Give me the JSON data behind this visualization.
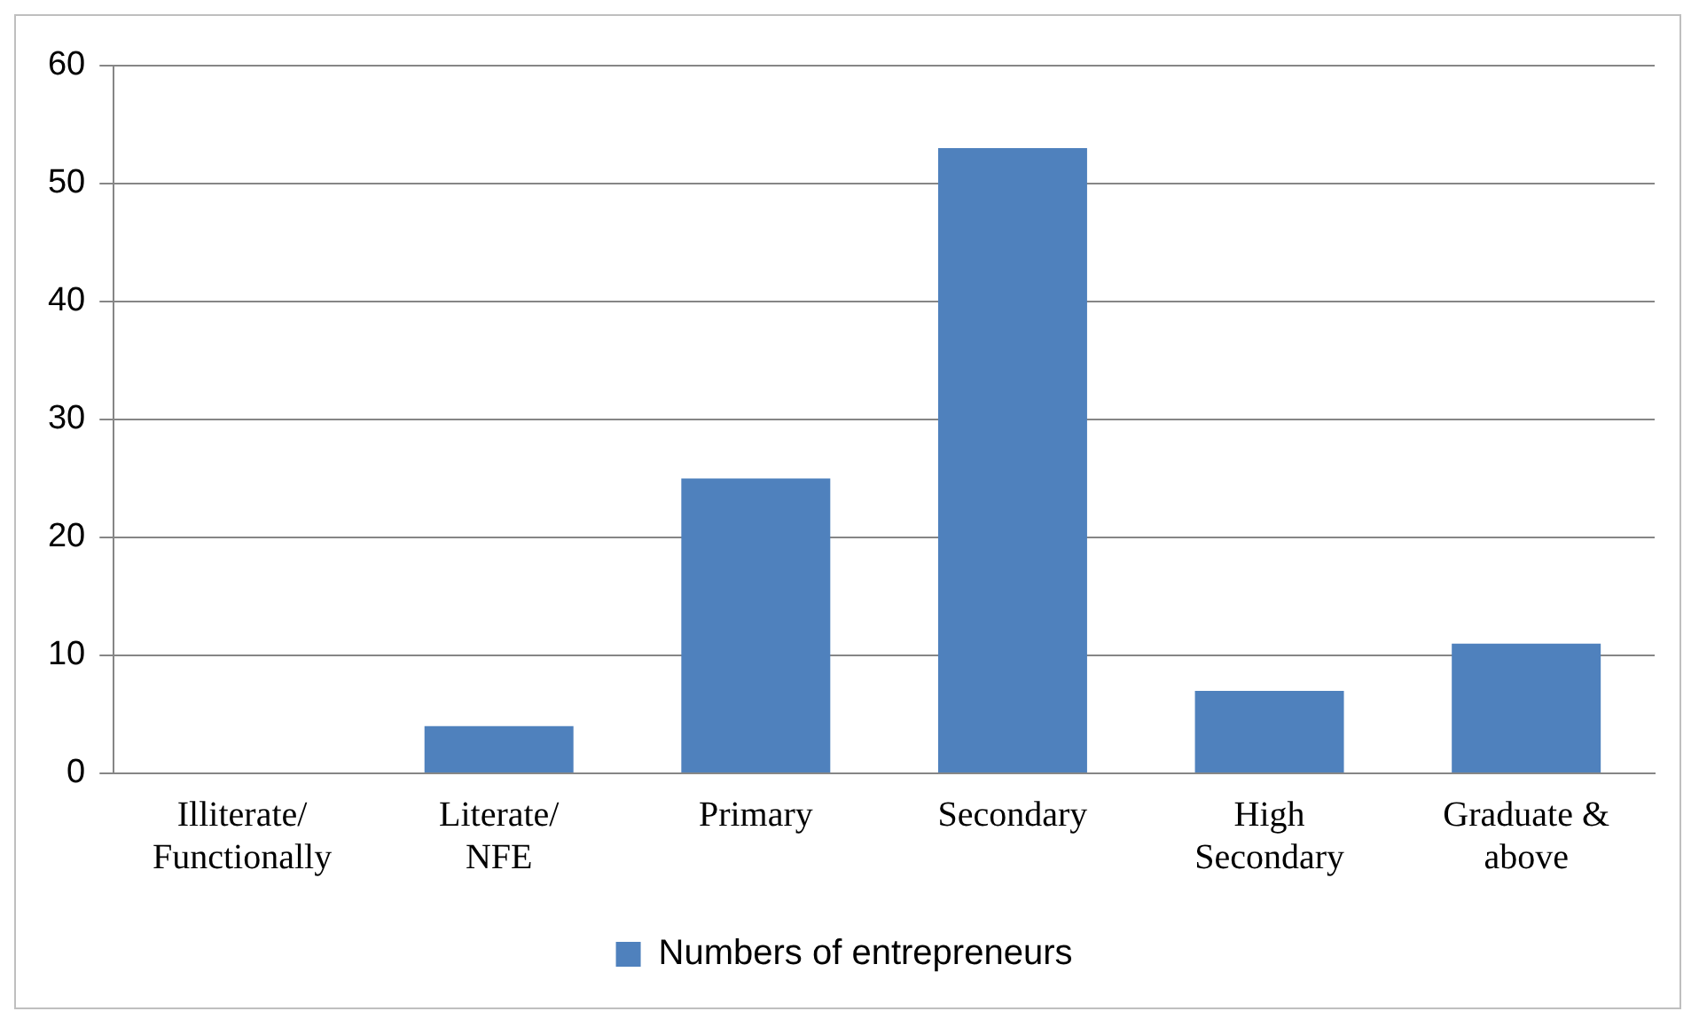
{
  "chart_data": {
    "type": "bar",
    "categories": [
      "Illiterate/ Functionally",
      "Literate/ NFE",
      "Primary",
      "Secondary",
      "High Secondary",
      "Graduate & above"
    ],
    "series": [
      {
        "name": "Numbers of entrepreneurs",
        "color": "#4f81bd",
        "values": [
          0,
          4,
          25,
          53,
          7,
          11
        ]
      }
    ],
    "ylim": [
      0,
      60
    ],
    "yticks": [
      0,
      10,
      20,
      30,
      40,
      50,
      60
    ],
    "grid": "y",
    "legend": "bottom"
  }
}
